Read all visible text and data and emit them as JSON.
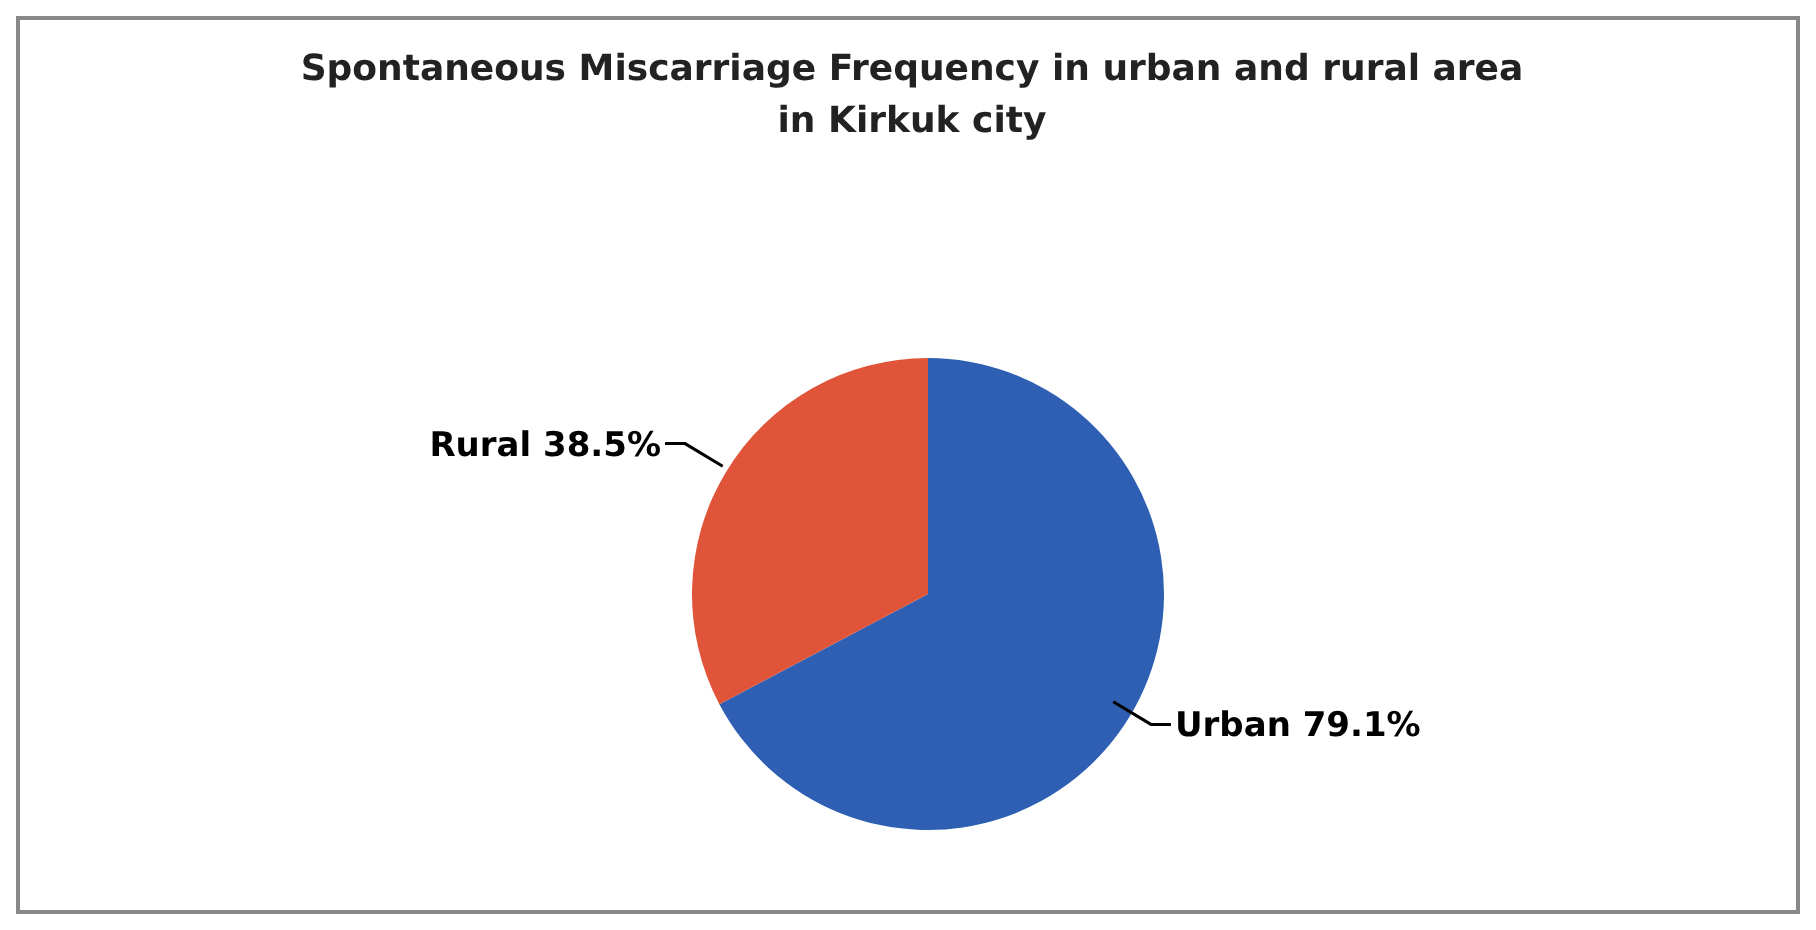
{
  "chart_data": {
    "type": "pie",
    "title": "Spontaneous Miscarriage Frequency in urban and rural  area\nin Kirkuk city",
    "categories": [
      "Urban",
      "Rural"
    ],
    "values": [
      79.1,
      38.5
    ],
    "colors": [
      "#2f5fb3",
      "#e0553a"
    ],
    "value_labels": [
      "79.1%",
      "38.5%"
    ],
    "legend": false
  }
}
